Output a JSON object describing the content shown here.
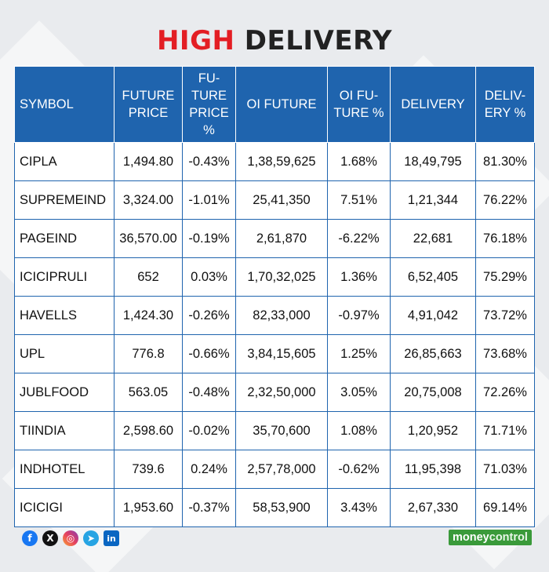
{
  "title": {
    "part1": "HIGH",
    "part2": "DELIVERY"
  },
  "table": {
    "headers": {
      "symbol": "SYMBOL",
      "future_price": "FUTURE PRICE",
      "future_price_pct": "FU-TURE PRICE %",
      "oi_future": "OI FUTURE",
      "oi_future_pct": "OI FU-TURE %",
      "delivery": "DELIVERY",
      "delivery_pct": "DELIV-ERY %"
    },
    "rows": [
      {
        "symbol": "CIPLA",
        "future_price": "1,494.80",
        "future_price_pct": "-0.43%",
        "oi_future": "1,38,59,625",
        "oi_future_pct": "1.68%",
        "delivery": "18,49,795",
        "delivery_pct": "81.30%"
      },
      {
        "symbol": "SUPREMEIND",
        "future_price": "3,324.00",
        "future_price_pct": "-1.01%",
        "oi_future": "25,41,350",
        "oi_future_pct": "7.51%",
        "delivery": "1,21,344",
        "delivery_pct": "76.22%"
      },
      {
        "symbol": "PAGEIND",
        "future_price": "36,570.00",
        "future_price_pct": "-0.19%",
        "oi_future": "2,61,870",
        "oi_future_pct": "-6.22%",
        "delivery": "22,681",
        "delivery_pct": "76.18%"
      },
      {
        "symbol": "ICICIPRULI",
        "future_price": "652",
        "future_price_pct": "0.03%",
        "oi_future": "1,70,32,025",
        "oi_future_pct": "1.36%",
        "delivery": "6,52,405",
        "delivery_pct": "75.29%"
      },
      {
        "symbol": "HAVELLS",
        "future_price": "1,424.30",
        "future_price_pct": "-0.26%",
        "oi_future": "82,33,000",
        "oi_future_pct": "-0.97%",
        "delivery": "4,91,042",
        "delivery_pct": "73.72%"
      },
      {
        "symbol": "UPL",
        "future_price": "776.8",
        "future_price_pct": "-0.66%",
        "oi_future": "3,84,15,605",
        "oi_future_pct": "1.25%",
        "delivery": "26,85,663",
        "delivery_pct": "73.68%"
      },
      {
        "symbol": "JUBLFOOD",
        "future_price": "563.05",
        "future_price_pct": "-0.48%",
        "oi_future": "2,32,50,000",
        "oi_future_pct": "3.05%",
        "delivery": "20,75,008",
        "delivery_pct": "72.26%"
      },
      {
        "symbol": "TIINDIA",
        "future_price": "2,598.60",
        "future_price_pct": "-0.02%",
        "oi_future": "35,70,600",
        "oi_future_pct": "1.08%",
        "delivery": "1,20,952",
        "delivery_pct": "71.71%"
      },
      {
        "symbol": "INDHOTEL",
        "future_price": "739.6",
        "future_price_pct": "0.24%",
        "oi_future": "2,57,78,000",
        "oi_future_pct": "-0.62%",
        "delivery": "11,95,398",
        "delivery_pct": "71.03%"
      },
      {
        "symbol": "ICICIGI",
        "future_price": "1,953.60",
        "future_price_pct": "-0.37%",
        "oi_future": "58,53,900",
        "oi_future_pct": "3.43%",
        "delivery": "2,67,330",
        "delivery_pct": "69.14%"
      }
    ]
  },
  "footer": {
    "social_icons": [
      {
        "name": "facebook-icon",
        "glyph": "f"
      },
      {
        "name": "x-icon",
        "glyph": "X"
      },
      {
        "name": "instagram-icon",
        "glyph": "◎"
      },
      {
        "name": "telegram-icon",
        "glyph": "➤"
      },
      {
        "name": "linkedin-icon",
        "glyph": "in"
      }
    ],
    "brand_money": "money",
    "brand_control": "control"
  },
  "colors": {
    "header_bg": "#1f64ae",
    "title_red": "#e31e24",
    "brand_green": "#3a9a3a"
  }
}
